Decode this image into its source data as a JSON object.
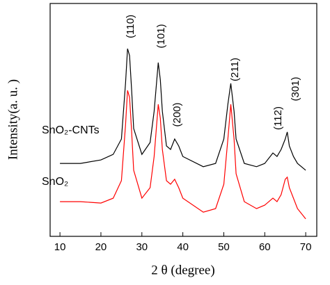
{
  "chart_data": {
    "type": "line",
    "x_label": "2 θ (degree)",
    "y_label": "Intensity(a. u. )",
    "x": [
      10,
      15,
      20,
      23,
      25,
      26,
      26.5,
      27,
      27.5,
      28,
      30,
      32,
      33,
      34,
      34.5,
      35,
      36,
      37,
      38,
      39,
      40,
      45,
      48,
      50,
      51,
      51.7,
      52.5,
      53,
      55,
      58,
      60,
      62,
      63,
      64,
      65,
      65.5,
      66,
      67,
      68,
      70
    ],
    "series": [
      {
        "name": "SnO₂-CNTs",
        "color": "#000000",
        "values": [
          31.3,
          31.3,
          32.8,
          35.2,
          41.8,
          65.7,
          80.6,
          77.6,
          62.7,
          46.3,
          35.2,
          40.3,
          53.7,
          74.6,
          67.2,
          53.7,
          38.8,
          37.3,
          41.8,
          38.8,
          34.3,
          29.9,
          31.3,
          41.8,
          56.7,
          65.7,
          53.7,
          41.8,
          31.3,
          29.9,
          31.3,
          35.8,
          34.3,
          37.3,
          41.8,
          44.8,
          38.8,
          34.3,
          31.3,
          28.4
        ]
      },
      {
        "name": "SnO₂",
        "color": "#ff0000",
        "values": [
          14.9,
          14.9,
          14.3,
          16.4,
          23.9,
          47.8,
          62.7,
          59.7,
          44.8,
          28.4,
          16.4,
          20.9,
          34.3,
          56.7,
          50.7,
          37.3,
          23.9,
          22.4,
          24.5,
          20.9,
          16.4,
          10.4,
          11.9,
          22.4,
          41.8,
          56.7,
          41.8,
          26.9,
          14.9,
          11.9,
          13.4,
          16.4,
          14.9,
          17.9,
          24.5,
          25.4,
          20.9,
          16.4,
          11.9,
          7.5
        ]
      }
    ],
    "annotations": [
      "(110)",
      "(101)",
      "(200)",
      "(211)",
      "(112)",
      "(301)"
    ],
    "xlim": [
      7.6,
      72.7
    ],
    "xticks": [
      10,
      20,
      30,
      40,
      50,
      60,
      70
    ],
    "ylim": [
      0,
      100
    ]
  }
}
